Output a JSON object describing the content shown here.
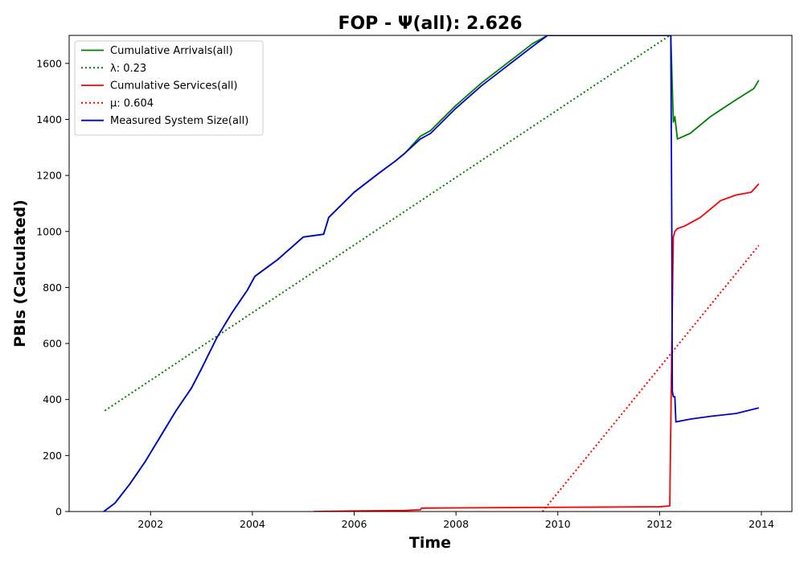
{
  "chart_data": {
    "type": "line",
    "title": "FOP -  Ψ(all): 2.626",
    "xlabel": "Time",
    "ylabel": "PBIs (Calculated)",
    "xlim": [
      2000.4,
      2014.6
    ],
    "ylim": [
      0,
      1700
    ],
    "xticks": [
      2002,
      2004,
      2006,
      2008,
      2010,
      2012,
      2014
    ],
    "yticks": [
      0,
      200,
      400,
      600,
      800,
      1000,
      1200,
      1400,
      1600
    ],
    "grid": false,
    "legend_position": "top-left",
    "series": [
      {
        "name": "Cumulative Arrivals(all)",
        "color": "#008000",
        "style": "solid",
        "x": [
          2001.08,
          2001.3,
          2001.6,
          2001.9,
          2002.2,
          2002.5,
          2002.8,
          2003.0,
          2003.3,
          2003.6,
          2003.9,
          2004.05,
          2004.5,
          2005.0,
          2005.4,
          2005.5,
          2006.0,
          2006.5,
          2006.8,
          2007.0,
          2007.3,
          2007.5,
          2008.0,
          2008.5,
          2009.0,
          2009.5,
          2009.8,
          2012.22,
          2012.27,
          2012.3,
          2012.35,
          2012.6,
          2013.0,
          2013.5,
          2013.85,
          2013.95
        ],
        "values": [
          0,
          30,
          100,
          180,
          270,
          360,
          440,
          510,
          620,
          710,
          790,
          840,
          900,
          980,
          990,
          1050,
          1140,
          1210,
          1250,
          1280,
          1340,
          1360,
          1450,
          1530,
          1600,
          1670,
          1700,
          1700,
          1390,
          1410,
          1330,
          1350,
          1410,
          1470,
          1510,
          1540
        ]
      },
      {
        "name": "λ: 0.23",
        "color": "#008000",
        "style": "dotted",
        "x": [
          2001.1,
          2012.2
        ],
        "values": [
          360,
          1700
        ]
      },
      {
        "name": "Cumulative Services(all)",
        "color": "#ff0000",
        "style": "solid",
        "x": [
          2005.2,
          2006.0,
          2007.0,
          2007.3,
          2007.32,
          2008.0,
          2009.0,
          2010.0,
          2011.0,
          2012.0,
          2012.2,
          2012.24,
          2012.27,
          2012.3,
          2012.35,
          2012.5,
          2012.8,
          2013.0,
          2013.2,
          2013.5,
          2013.8,
          2013.95
        ],
        "values": [
          0,
          2,
          4,
          6,
          12,
          13,
          14,
          15,
          16,
          17,
          20,
          600,
          980,
          1000,
          1010,
          1020,
          1050,
          1080,
          1110,
          1130,
          1140,
          1170
        ]
      },
      {
        "name": "μ: 0.604",
        "color": "#ff0000",
        "style": "dotted",
        "x": [
          2009.7,
          2013.95
        ],
        "values": [
          0,
          950
        ]
      },
      {
        "name": "Measured System Size(all)",
        "color": "#0000cc",
        "style": "solid",
        "x": [
          2001.08,
          2001.3,
          2001.6,
          2001.9,
          2002.2,
          2002.5,
          2002.8,
          2003.0,
          2003.3,
          2003.6,
          2003.9,
          2004.05,
          2004.5,
          2005.0,
          2005.4,
          2005.5,
          2006.0,
          2006.5,
          2006.8,
          2007.0,
          2007.3,
          2007.5,
          2008.0,
          2008.5,
          2009.0,
          2009.5,
          2009.8,
          2012.22,
          2012.24,
          2012.25,
          2012.27,
          2012.3,
          2012.32,
          2012.6,
          2013.0,
          2013.5,
          2013.95
        ],
        "values": [
          0,
          30,
          100,
          180,
          270,
          360,
          440,
          510,
          620,
          710,
          790,
          840,
          900,
          980,
          990,
          1050,
          1140,
          1210,
          1250,
          1280,
          1330,
          1350,
          1440,
          1520,
          1590,
          1660,
          1700,
          1700,
          1000,
          430,
          410,
          410,
          320,
          330,
          340,
          350,
          370
        ]
      }
    ]
  }
}
